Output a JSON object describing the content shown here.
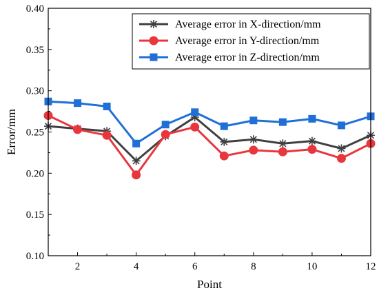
{
  "chart_data": {
    "type": "line",
    "xlabel": "Point",
    "ylabel": "Error/mm",
    "xlim": [
      1,
      12
    ],
    "ylim": [
      0.1,
      0.4
    ],
    "x": [
      1,
      2,
      3,
      4,
      5,
      6,
      7,
      8,
      9,
      10,
      11,
      12
    ],
    "x_ticks": [
      "2",
      "4",
      "6",
      "8",
      "10",
      "12"
    ],
    "y_ticks": [
      "0.10",
      "0.15",
      "0.20",
      "0.25",
      "0.30",
      "0.35",
      "0.40"
    ],
    "grid": false,
    "legend_position": "top-right",
    "series": [
      {
        "name": "Average error in X-direction/mm",
        "color": "#3f3f3f",
        "marker": "asterisk",
        "values": [
          0.257,
          0.254,
          0.251,
          0.215,
          0.245,
          0.268,
          0.238,
          0.241,
          0.236,
          0.239,
          0.23,
          0.246
        ]
      },
      {
        "name": "Average error in Y-direction/mm",
        "color": "#e8363d",
        "marker": "circle",
        "values": [
          0.27,
          0.253,
          0.246,
          0.198,
          0.247,
          0.256,
          0.221,
          0.228,
          0.226,
          0.229,
          0.218,
          0.236
        ]
      },
      {
        "name": "Average error in Z-direction/mm",
        "color": "#1f6fd6",
        "marker": "square",
        "values": [
          0.287,
          0.285,
          0.281,
          0.236,
          0.259,
          0.274,
          0.257,
          0.264,
          0.262,
          0.266,
          0.258,
          0.269
        ]
      }
    ]
  }
}
